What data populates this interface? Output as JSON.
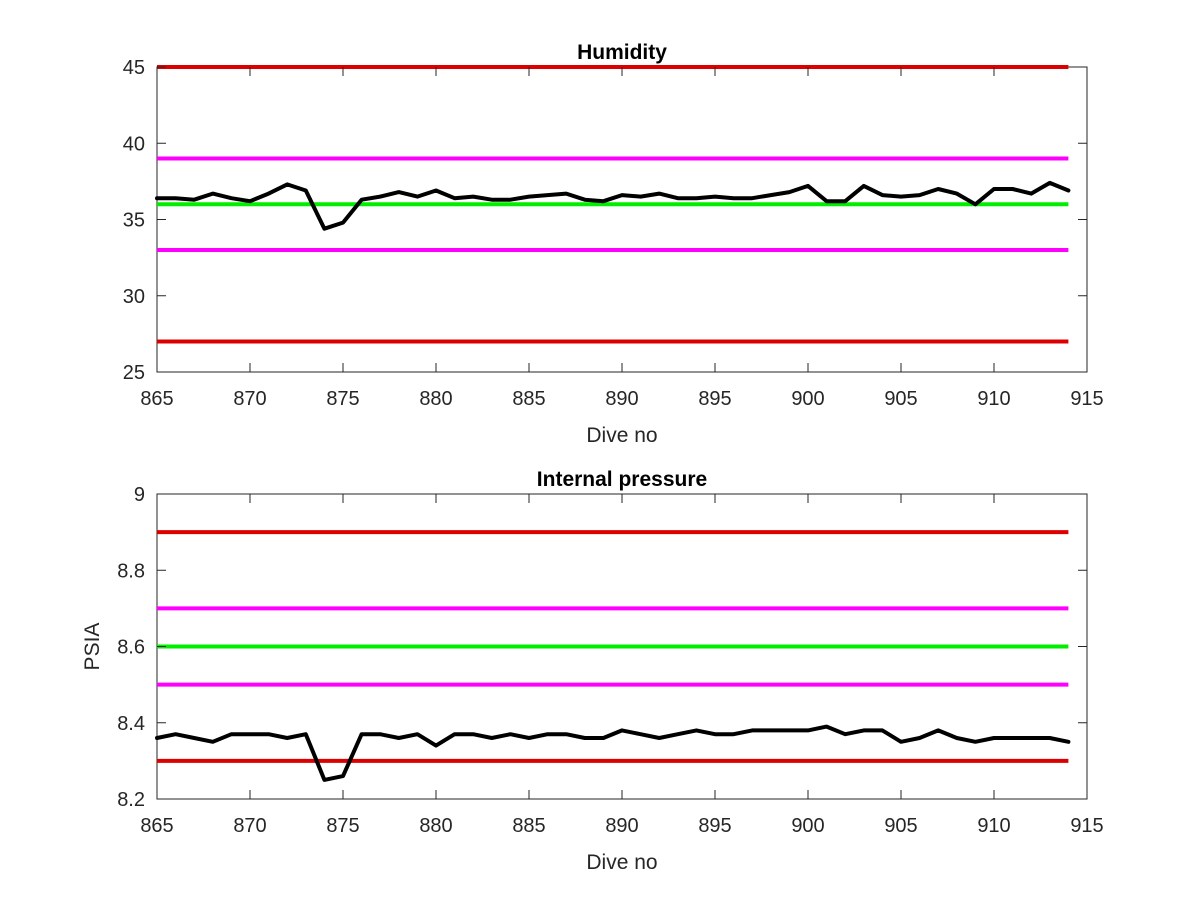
{
  "chart_data": [
    {
      "type": "line",
      "title": "Humidity",
      "xlabel": "Dive no",
      "ylabel": "",
      "xlim": [
        865,
        915
      ],
      "ylim": [
        25,
        45
      ],
      "xticks": [
        865,
        870,
        875,
        880,
        885,
        890,
        895,
        900,
        905,
        910,
        915
      ],
      "yticks": [
        25,
        30,
        35,
        40,
        45
      ],
      "grid": false,
      "reference_lines": [
        {
          "y": 45,
          "color": "#dd0000"
        },
        {
          "y": 39,
          "color": "#ff00ff"
        },
        {
          "y": 36,
          "color": "#00ee00"
        },
        {
          "y": 33,
          "color": "#ff00ff"
        },
        {
          "y": 27,
          "color": "#dd0000"
        }
      ],
      "series": [
        {
          "color": "#000000",
          "x": [
            865,
            866,
            867,
            868,
            869,
            870,
            871,
            872,
            873,
            874,
            875,
            876,
            877,
            878,
            879,
            880,
            881,
            882,
            883,
            884,
            885,
            886,
            887,
            888,
            889,
            890,
            891,
            892,
            893,
            894,
            895,
            896,
            897,
            898,
            899,
            900,
            901,
            902,
            903,
            904,
            905,
            906,
            907,
            908,
            909,
            910,
            911,
            912,
            913,
            914
          ],
          "y": [
            36.4,
            36.4,
            36.3,
            36.7,
            36.4,
            36.2,
            36.7,
            37.3,
            36.9,
            34.4,
            34.8,
            36.3,
            36.5,
            36.8,
            36.5,
            36.9,
            36.4,
            36.5,
            36.3,
            36.3,
            36.5,
            36.6,
            36.7,
            36.3,
            36.2,
            36.6,
            36.5,
            36.7,
            36.4,
            36.4,
            36.5,
            36.4,
            36.4,
            36.6,
            36.8,
            37.2,
            36.2,
            36.2,
            37.2,
            36.6,
            36.5,
            36.6,
            37.0,
            36.7,
            36.0,
            37.0,
            37.0,
            36.7,
            37.4,
            36.9
          ]
        }
      ]
    },
    {
      "type": "line",
      "title": "Internal pressure",
      "xlabel": "Dive no",
      "ylabel": "PSIA",
      "xlim": [
        865,
        915
      ],
      "ylim": [
        8.2,
        9.0
      ],
      "xticks": [
        865,
        870,
        875,
        880,
        885,
        890,
        895,
        900,
        905,
        910,
        915
      ],
      "yticks": [
        8.2,
        8.4,
        8.6,
        8.8,
        9.0
      ],
      "ytick_labels": [
        "8.2",
        "8.4",
        "8.6",
        "8.8",
        "9"
      ],
      "grid": false,
      "reference_lines": [
        {
          "y": 8.9,
          "color": "#dd0000"
        },
        {
          "y": 8.7,
          "color": "#ff00ff"
        },
        {
          "y": 8.6,
          "color": "#00ee00"
        },
        {
          "y": 8.5,
          "color": "#ff00ff"
        },
        {
          "y": 8.3,
          "color": "#dd0000"
        }
      ],
      "series": [
        {
          "color": "#000000",
          "x": [
            865,
            866,
            867,
            868,
            869,
            870,
            871,
            872,
            873,
            874,
            875,
            876,
            877,
            878,
            879,
            880,
            881,
            882,
            883,
            884,
            885,
            886,
            887,
            888,
            889,
            890,
            891,
            892,
            893,
            894,
            895,
            896,
            897,
            898,
            899,
            900,
            901,
            902,
            903,
            904,
            905,
            906,
            907,
            908,
            909,
            910,
            911,
            912,
            913,
            914
          ],
          "y": [
            8.36,
            8.37,
            8.36,
            8.35,
            8.37,
            8.37,
            8.37,
            8.36,
            8.37,
            8.25,
            8.26,
            8.37,
            8.37,
            8.36,
            8.37,
            8.34,
            8.37,
            8.37,
            8.36,
            8.37,
            8.36,
            8.37,
            8.37,
            8.36,
            8.36,
            8.38,
            8.37,
            8.36,
            8.37,
            8.38,
            8.37,
            8.37,
            8.38,
            8.38,
            8.38,
            8.38,
            8.39,
            8.37,
            8.38,
            8.38,
            8.35,
            8.36,
            8.38,
            8.36,
            8.35,
            8.36,
            8.36,
            8.36,
            8.36,
            8.35
          ]
        }
      ]
    }
  ]
}
